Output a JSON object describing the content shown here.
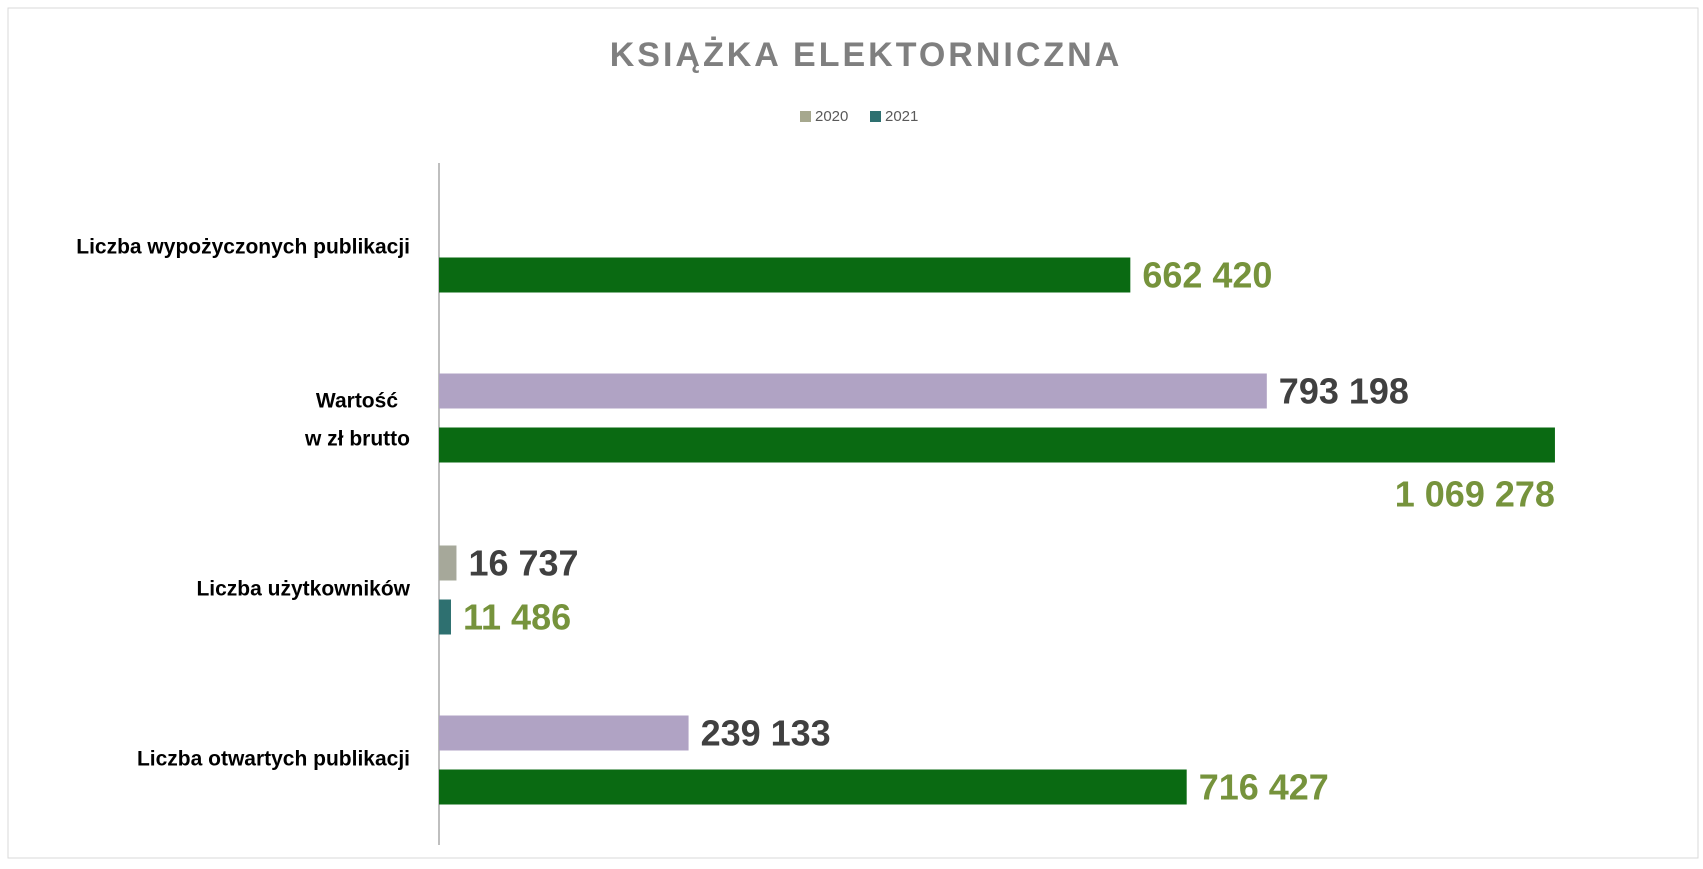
{
  "chart_data": {
    "type": "hbar",
    "title": "KSIĄŻKA ELEKTORNICZNA",
    "categories": [
      "Liczba wypożyczonych publikacji",
      [
        "Wartość",
        "w zł brutto"
      ],
      "Liczba użytkowników",
      "Liczba otwartych publikacji"
    ],
    "series": [
      {
        "name": "2020",
        "color": "#a6a88e",
        "bar_colors": [
          null,
          "#b0a3c4",
          "#a6a89a",
          "#b0a3c4"
        ],
        "label_color": "#404040",
        "values": [
          null,
          793198,
          16737,
          239133
        ],
        "value_labels": [
          null,
          "793 198",
          "16 737",
          "239 133"
        ]
      },
      {
        "name": "2021",
        "color": "#2e7070",
        "bar_colors": [
          "#0a6a12",
          "#0a6a12",
          "#2e7070",
          "#0a6a12"
        ],
        "label_color": "#76933c",
        "values": [
          662420,
          1069278,
          11486,
          716427
        ],
        "value_labels": [
          "662 420",
          "1 069 278",
          "11 486",
          "716 427"
        ]
      }
    ],
    "xlim": [
      0,
      1100000
    ],
    "legend": "top"
  }
}
